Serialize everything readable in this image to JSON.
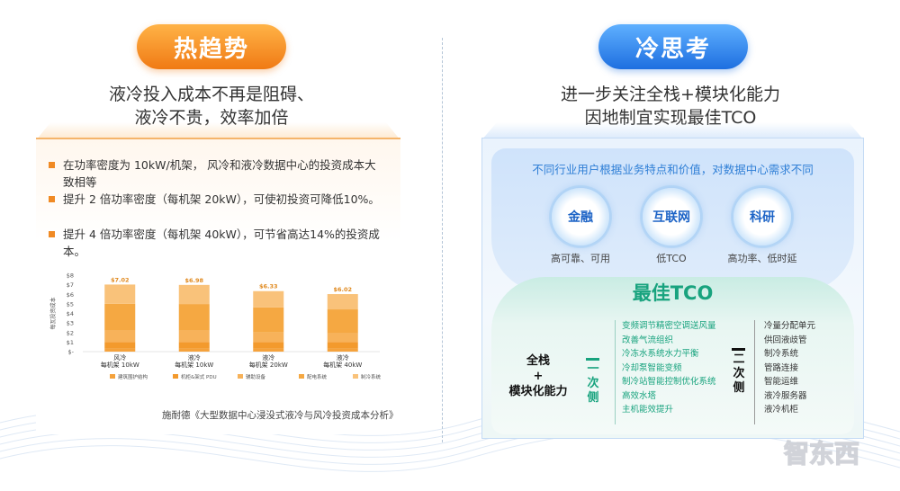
{
  "left": {
    "pill": "热趋势",
    "subtitle_line1": "液冷投入成本不再是阻碍、",
    "subtitle_line2": "液冷不贵，效率加倍",
    "bullets": [
      "在功率密度为 10kW/机架， 风冷和液冷数据中心的投资成本大致相等",
      "提升 2 倍功率密度（每机架 20kW），可使初投资可降低10%。",
      "提升 4 倍功率密度（每机架 40kW），可节省高达14%的投资成本。"
    ],
    "caption": "施耐德《大型数据中心浸没式液冷与风冷投资成本分析》"
  },
  "right": {
    "pill": "冷思考",
    "subtitle_line1": "进一步关注全栈+模块化能力",
    "subtitle_line2": "因地制宜实现最佳TCO",
    "need_text": "不同行业用户根据业务特点和价值，对数据中心需求不同",
    "circles": [
      {
        "label": "金融",
        "sub": "高可靠、可用"
      },
      {
        "label": "互联网",
        "sub": "低TCO"
      },
      {
        "label": "科研",
        "sub": "高功率、低时延"
      }
    ],
    "best_tco": "最佳TCO",
    "fullstack_line1": "全栈",
    "fullstack_plus": "+",
    "fullstack_line2": "模块化能力",
    "primary_label": "一次侧",
    "secondary_label": "二次侧",
    "primary_items": [
      "变频调节精密空调送风量",
      "改善气流组织",
      "冷冻水系统水力平衡",
      "冷却泵智能变频",
      "制冷站智能控制优化系统",
      "高效水塔",
      "主机能效提升"
    ],
    "secondary_items": [
      "冷量分配单元",
      "供回液歧管",
      "制冷系统",
      "管路连接",
      "智能运维",
      "液冷服务器",
      "液冷机柜"
    ]
  },
  "watermark": "智东西",
  "chart_data": {
    "type": "bar",
    "stacked": true,
    "ylabel": "每瓦投资成本",
    "ylim": [
      0,
      8
    ],
    "yticks": [
      "$-",
      "$1",
      "$2",
      "$3",
      "$4",
      "$5",
      "$6",
      "$7",
      "$8"
    ],
    "categories": [
      {
        "line1": "风冷",
        "line2": "每机架 10kW"
      },
      {
        "line1": "液冷",
        "line2": "每机架 10kW"
      },
      {
        "line1": "液冷",
        "line2": "每机架 20kW"
      },
      {
        "line1": "液冷",
        "line2": "每机架 40kW"
      }
    ],
    "totals": [
      7.02,
      6.98,
      6.33,
      6.02
    ],
    "total_labels": [
      "$7.02",
      "$6.98",
      "$6.33",
      "$6.02"
    ],
    "series": [
      {
        "name": "建筑围护结构",
        "color": "#f5a23c",
        "values": [
          0.3,
          0.3,
          0.3,
          0.3
        ]
      },
      {
        "name": "机柜&架式 PDU",
        "color": "#f39a2d",
        "values": [
          0.7,
          0.7,
          0.7,
          0.7
        ]
      },
      {
        "name": "辅助设备",
        "color": "#f7b25a",
        "values": [
          1.2,
          1.2,
          1.0,
          0.9
        ]
      },
      {
        "name": "配电系统",
        "color": "#f5a842",
        "values": [
          2.8,
          2.78,
          2.63,
          2.52
        ]
      },
      {
        "name": "制冷系统",
        "color": "#f9c27a",
        "values": [
          2.02,
          2.0,
          1.7,
          1.6
        ]
      }
    ]
  }
}
